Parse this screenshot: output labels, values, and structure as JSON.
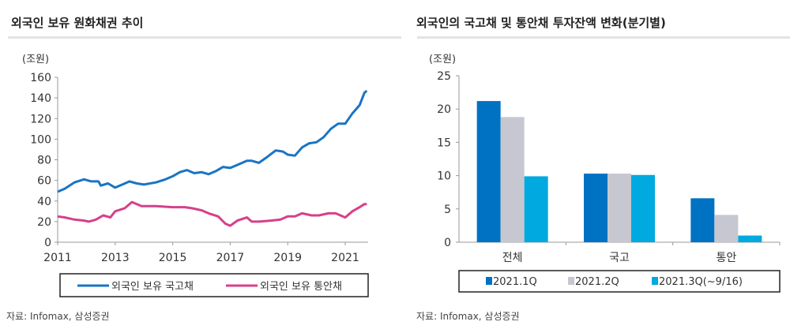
{
  "left": {
    "title": "외국인 보유 원화채권 추이",
    "unit": "(조원)",
    "source": "자료: Infomax, 삼성증권"
  },
  "right": {
    "title": "외국인의 국고채 및 통안채 투자잔액 변화(분기별)",
    "unit": "(조원)",
    "source": "자료: Infomax, 삼성증권"
  },
  "chart_data": [
    {
      "type": "line",
      "title": "외국인 보유 원화채권 추이",
      "ylabel": "(조원)",
      "ylim": [
        0,
        160
      ],
      "yticks": [
        0,
        20,
        40,
        60,
        80,
        100,
        120,
        140,
        160
      ],
      "xticks": [
        "2011",
        "2013",
        "2015",
        "2017",
        "2019",
        "2021"
      ],
      "legend": "bottom",
      "series": [
        {
          "name": "외국인 보유 국고채",
          "color": "#1a74c4",
          "points": [
            [
              "2011-01",
              49
            ],
            [
              "2011-04",
              52
            ],
            [
              "2011-08",
              58
            ],
            [
              "2011-12",
              61
            ],
            [
              "2012-03",
              59
            ],
            [
              "2012-06",
              59
            ],
            [
              "2012-07",
              55
            ],
            [
              "2012-10",
              57
            ],
            [
              "2013-01",
              53
            ],
            [
              "2013-04",
              56
            ],
            [
              "2013-07",
              59
            ],
            [
              "2013-10",
              57
            ],
            [
              "2014-01",
              56
            ],
            [
              "2014-06",
              58
            ],
            [
              "2014-10",
              61
            ],
            [
              "2015-01",
              64
            ],
            [
              "2015-04",
              68
            ],
            [
              "2015-07",
              70
            ],
            [
              "2015-10",
              67
            ],
            [
              "2016-01",
              68
            ],
            [
              "2016-04",
              66
            ],
            [
              "2016-07",
              69
            ],
            [
              "2016-10",
              73
            ],
            [
              "2017-01",
              72
            ],
            [
              "2017-04",
              75
            ],
            [
              "2017-08",
              79
            ],
            [
              "2017-10",
              79
            ],
            [
              "2018-01",
              77
            ],
            [
              "2018-04",
              82
            ],
            [
              "2018-08",
              89
            ],
            [
              "2018-11",
              88
            ],
            [
              "2019-01",
              85
            ],
            [
              "2019-04",
              84
            ],
            [
              "2019-07",
              92
            ],
            [
              "2019-10",
              96
            ],
            [
              "2020-01",
              97
            ],
            [
              "2020-04",
              102
            ],
            [
              "2020-07",
              110
            ],
            [
              "2020-10",
              115
            ],
            [
              "2021-01",
              115
            ],
            [
              "2021-04",
              125
            ],
            [
              "2021-07",
              133
            ],
            [
              "2021-09",
              145
            ],
            [
              "2021-10",
              147
            ]
          ]
        },
        {
          "name": "외국인 보유 통안채",
          "color": "#d6408a",
          "points": [
            [
              "2011-01",
              25
            ],
            [
              "2011-04",
              24
            ],
            [
              "2011-08",
              22
            ],
            [
              "2011-12",
              21
            ],
            [
              "2012-02",
              20
            ],
            [
              "2012-05",
              22
            ],
            [
              "2012-08",
              26
            ],
            [
              "2012-11",
              24
            ],
            [
              "2013-01",
              30
            ],
            [
              "2013-05",
              33
            ],
            [
              "2013-08",
              39
            ],
            [
              "2013-12",
              35
            ],
            [
              "2014-06",
              35
            ],
            [
              "2015-01",
              34
            ],
            [
              "2015-06",
              34
            ],
            [
              "2015-09",
              33
            ],
            [
              "2016-01",
              31
            ],
            [
              "2016-04",
              28
            ],
            [
              "2016-08",
              25
            ],
            [
              "2016-11",
              18
            ],
            [
              "2017-01",
              16
            ],
            [
              "2017-04",
              21
            ],
            [
              "2017-08",
              24
            ],
            [
              "2017-10",
              20
            ],
            [
              "2018-01",
              20
            ],
            [
              "2018-06",
              21
            ],
            [
              "2018-10",
              22
            ],
            [
              "2019-01",
              25
            ],
            [
              "2019-04",
              25
            ],
            [
              "2019-07",
              28
            ],
            [
              "2019-11",
              26
            ],
            [
              "2020-02",
              26
            ],
            [
              "2020-06",
              28
            ],
            [
              "2020-09",
              28
            ],
            [
              "2021-01",
              24
            ],
            [
              "2021-04",
              30
            ],
            [
              "2021-07",
              34
            ],
            [
              "2021-09",
              37
            ],
            [
              "2021-10",
              37
            ]
          ]
        }
      ]
    },
    {
      "type": "bar",
      "title": "외국인의 국고채 및 통안채 투자잔액 변화(분기별)",
      "ylabel": "(조원)",
      "ylim": [
        0,
        25
      ],
      "yticks": [
        0,
        5,
        10,
        15,
        20,
        25
      ],
      "categories": [
        "전체",
        "국고",
        "통안"
      ],
      "legend": "bottom",
      "series": [
        {
          "name": "2021.1Q",
          "color": "#0072c4",
          "values": [
            21.2,
            10.3,
            6.6
          ]
        },
        {
          "name": "2021.2Q",
          "color": "#c6c7d0",
          "values": [
            18.8,
            10.3,
            4.1
          ]
        },
        {
          "name": "2021.3Q(~9/16)",
          "color": "#00a9e0",
          "values": [
            9.9,
            10.1,
            1.0
          ]
        }
      ]
    }
  ]
}
